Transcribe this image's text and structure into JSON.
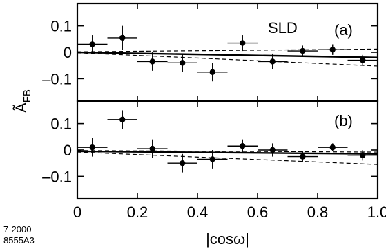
{
  "chart_data": {
    "type": "scatter",
    "xlabel": "|cosω|",
    "ylabel": "Ã",
    "ylabel_sub": "FB",
    "xlim": [
      0,
      1.0
    ],
    "xticks": [
      0,
      0.2,
      0.4,
      0.6,
      0.8,
      1.0
    ],
    "xtick_labels": [
      "0",
      "0.2",
      "0.4",
      "0.6",
      "0.8",
      "1.0"
    ],
    "experiment_label": "SLD",
    "figure_code": [
      "7-2000",
      "8555A3"
    ],
    "panels": [
      {
        "label": "(a)",
        "ylim": [
          -0.185,
          0.185
        ],
        "yticks": [
          0.1,
          0,
          -0.1
        ],
        "ytick_labels": [
          "0.1",
          "0",
          "–0.1"
        ],
        "points": [
          {
            "x": 0.05,
            "y": 0.03,
            "xerr": 0.05,
            "yerr": 0.035
          },
          {
            "x": 0.15,
            "y": 0.055,
            "xerr": 0.05,
            "yerr": 0.045
          },
          {
            "x": 0.25,
            "y": -0.035,
            "xerr": 0.05,
            "yerr": 0.035
          },
          {
            "x": 0.35,
            "y": -0.04,
            "xerr": 0.05,
            "yerr": 0.035
          },
          {
            "x": 0.45,
            "y": -0.075,
            "xerr": 0.05,
            "yerr": 0.035
          },
          {
            "x": 0.55,
            "y": 0.035,
            "xerr": 0.05,
            "yerr": 0.03
          },
          {
            "x": 0.65,
            "y": -0.035,
            "xerr": 0.05,
            "yerr": 0.03
          },
          {
            "x": 0.75,
            "y": 0.005,
            "xerr": 0.05,
            "yerr": 0.02
          },
          {
            "x": 0.85,
            "y": 0.01,
            "xerr": 0.05,
            "yerr": 0.02
          },
          {
            "x": 0.95,
            "y": -0.03,
            "xerr": 0.05,
            "yerr": 0.02
          }
        ],
        "fit_line": {
          "x": [
            0,
            1.0
          ],
          "y": [
            0.0,
            -0.02
          ]
        },
        "band_upper": {
          "x": [
            0,
            1.0
          ],
          "y": [
            0.002,
            0.012
          ]
        },
        "band_lower": {
          "x": [
            0,
            1.0
          ],
          "y": [
            -0.002,
            -0.052
          ]
        }
      },
      {
        "label": "(b)",
        "ylim": [
          -0.185,
          0.185
        ],
        "yticks": [
          0.1,
          0,
          -0.1
        ],
        "ytick_labels": [
          "0.1",
          "0",
          "–0.1"
        ],
        "points": [
          {
            "x": 0.05,
            "y": 0.01,
            "xerr": 0.05,
            "yerr": 0.035
          },
          {
            "x": 0.15,
            "y": 0.115,
            "xerr": 0.05,
            "yerr": 0.035
          },
          {
            "x": 0.25,
            "y": 0.005,
            "xerr": 0.05,
            "yerr": 0.035
          },
          {
            "x": 0.35,
            "y": -0.05,
            "xerr": 0.05,
            "yerr": 0.035
          },
          {
            "x": 0.45,
            "y": -0.035,
            "xerr": 0.05,
            "yerr": 0.035
          },
          {
            "x": 0.55,
            "y": 0.015,
            "xerr": 0.05,
            "yerr": 0.025
          },
          {
            "x": 0.65,
            "y": 0.0,
            "xerr": 0.05,
            "yerr": 0.025
          },
          {
            "x": 0.75,
            "y": -0.025,
            "xerr": 0.05,
            "yerr": 0.02
          },
          {
            "x": 0.85,
            "y": 0.01,
            "xerr": 0.05,
            "yerr": 0.015
          },
          {
            "x": 0.95,
            "y": -0.02,
            "xerr": 0.05,
            "yerr": 0.02
          }
        ],
        "fit_line": {
          "x": [
            0,
            1.0
          ],
          "y": [
            -0.005,
            -0.015
          ]
        },
        "band_upper": {
          "x": [
            0,
            1.0
          ],
          "y": [
            -0.002,
            -0.008
          ]
        },
        "band_lower": {
          "x": [
            0,
            1.0
          ],
          "y": [
            -0.008,
            -0.055
          ]
        }
      }
    ]
  }
}
